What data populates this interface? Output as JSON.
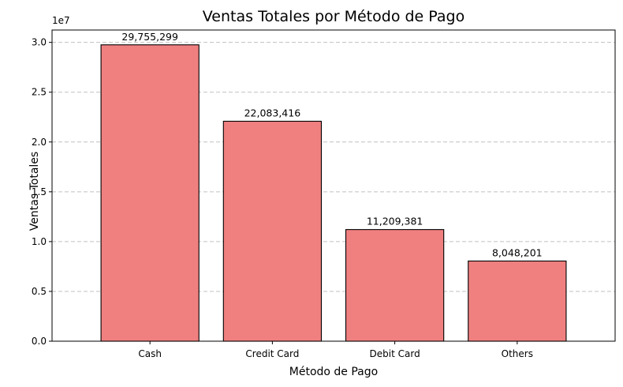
{
  "chart_data": {
    "type": "bar",
    "title": "Ventas Totales por Método de Pago",
    "xlabel": "Método de Pago",
    "ylabel": "Ventas Totales",
    "scale_note": "1e7",
    "categories": [
      "Cash",
      "Credit Card",
      "Debit Card",
      "Others"
    ],
    "values": [
      29755299,
      22083416,
      11209381,
      8048201
    ],
    "data_labels": [
      "29,755,299",
      "22,083,416",
      "11,209,381",
      "8,048,201"
    ],
    "yticks": [
      0,
      5000000,
      10000000,
      15000000,
      20000000,
      25000000,
      30000000
    ],
    "ytick_labels": [
      "0.0",
      "0.5",
      "1.0",
      "1.5",
      "2.0",
      "2.5",
      "3.0"
    ],
    "ylim": [
      0,
      31242564
    ],
    "grid": "y-dashed",
    "bar_color": "#f08080",
    "edge_color": "#000000"
  }
}
